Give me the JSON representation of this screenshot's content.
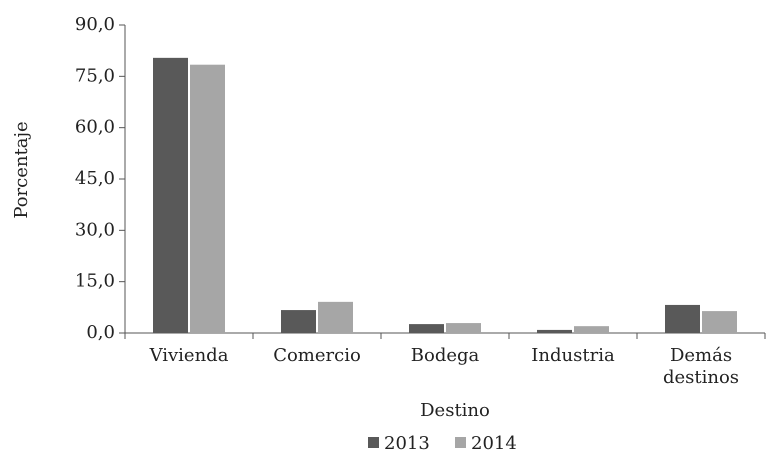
{
  "chart_data": {
    "type": "bar",
    "x_label": "Destino",
    "y_label": "Porcentaje",
    "categories": [
      "Vivienda",
      "Comercio",
      "Bodega",
      "Industria",
      "Demás destinos"
    ],
    "series": [
      {
        "name": "2013",
        "color": "#595959",
        "values": [
          80.4,
          6.7,
          2.6,
          0.9,
          8.2
        ]
      },
      {
        "name": "2014",
        "color": "#a6a6a6",
        "values": [
          78.4,
          9.1,
          2.9,
          2.0,
          6.4
        ]
      }
    ],
    "ylim": [
      0,
      90
    ],
    "yticks": [
      {
        "value": 0,
        "label": "0,0"
      },
      {
        "value": 15,
        "label": "15,0"
      },
      {
        "value": 30,
        "label": "30,0"
      },
      {
        "value": 45,
        "label": "45,0"
      },
      {
        "value": 60,
        "label": "60,0"
      },
      {
        "value": 75,
        "label": "75,0"
      },
      {
        "value": 90,
        "label": "90,0"
      }
    ],
    "legend": "bottom"
  }
}
